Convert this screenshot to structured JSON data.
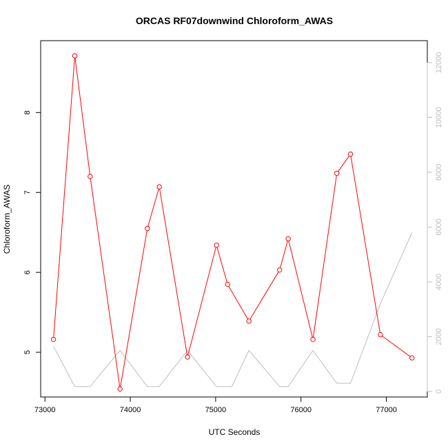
{
  "chart_data": {
    "type": "line",
    "title": "ORCAS RF07downwind Chloroform_AWAS",
    "xlabel": "UTC Seconds",
    "ylabel": "Chloroform_AWAS",
    "xlim": [
      72950,
      77480
    ],
    "ylim": [
      4.44,
      8.9
    ],
    "y2lim": [
      -200,
      12800
    ],
    "x_ticks": [
      73000,
      74000,
      75000,
      76000,
      77000
    ],
    "y_ticks": [
      5,
      6,
      7,
      8
    ],
    "y2_ticks": [
      0,
      2000,
      4000,
      6000,
      8000,
      10000,
      12000
    ],
    "grid": false,
    "series": [
      {
        "color": "#ff0000",
        "axis": "left",
        "markers": "open-circle",
        "x": [
          73100,
          73350,
          73530,
          73880,
          74200,
          74340,
          74670,
          75010,
          75140,
          75390,
          75750,
          75850,
          76140,
          76420,
          76580,
          76930,
          77300
        ],
        "y": [
          5.16,
          8.71,
          7.2,
          4.54,
          6.55,
          7.07,
          4.94,
          6.34,
          5.85,
          5.39,
          6.03,
          6.42,
          5.16,
          7.24,
          7.48,
          5.22,
          4.93
        ]
      },
      {
        "color": "#bdbdbd",
        "axis": "right",
        "markers": "none",
        "x": [
          73100,
          73350,
          73530,
          73880,
          74200,
          74340,
          74670,
          75010,
          75190,
          75390,
          75750,
          75850,
          76140,
          76420,
          76580,
          76930,
          77300
        ],
        "y": [
          1650,
          180,
          180,
          1500,
          180,
          180,
          1500,
          180,
          180,
          1500,
          180,
          180,
          1500,
          300,
          300,
          3200,
          5800
        ]
      }
    ]
  }
}
